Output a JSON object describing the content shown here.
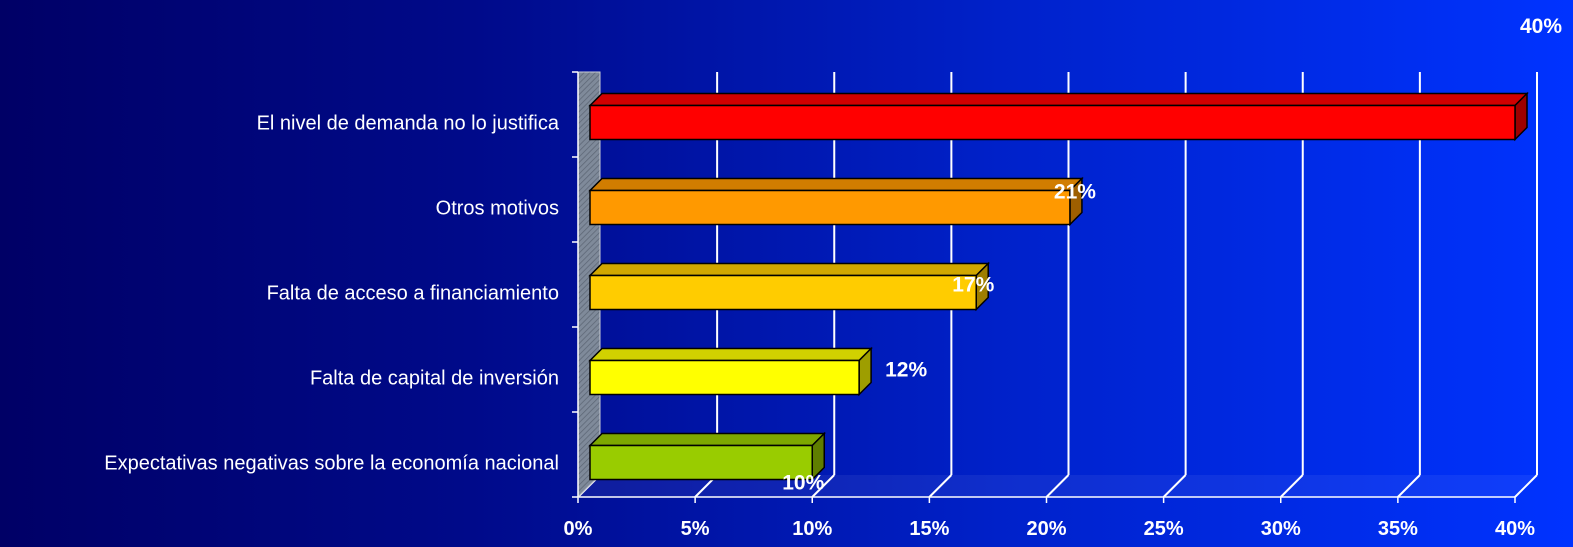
{
  "chart_data": {
    "type": "bar",
    "orientation": "horizontal",
    "style": "3d",
    "title": "",
    "xlabel": "",
    "ylabel": "",
    "grid": true,
    "legend": "none",
    "xlim": [
      0,
      40
    ],
    "x_ticks": [
      "0%",
      "5%",
      "10%",
      "15%",
      "20%",
      "25%",
      "30%",
      "35%",
      "40%"
    ],
    "categories": [
      "El nivel de demanda no lo justifica",
      "Otros motivos",
      "Falta de acceso a financiamiento",
      "Falta de capital de inversión",
      "Expectativas negativas sobre la economía nacional"
    ],
    "values": [
      40,
      21,
      17,
      12,
      10
    ],
    "data_labels": [
      "40%",
      "21%",
      "17%",
      "12%",
      "10%"
    ],
    "bar_colors": [
      "#ff0000",
      "#ff9900",
      "#ffcc00",
      "#ffff00",
      "#99cc00"
    ],
    "background_colors": [
      "#000066",
      "#0033ff"
    ]
  }
}
